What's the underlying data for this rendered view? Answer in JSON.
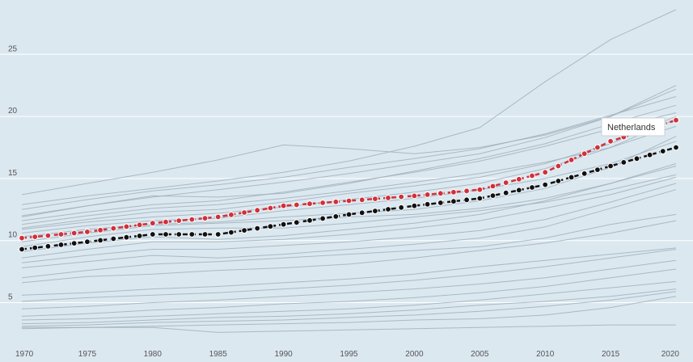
{
  "chart_data": {
    "type": "line",
    "title": "",
    "xlabel": "",
    "ylabel": "",
    "xlim": [
      1970,
      2020
    ],
    "ylim": [
      2,
      29
    ],
    "grid": true,
    "x_ticks": [
      1970,
      1975,
      1980,
      1985,
      1990,
      1995,
      2000,
      2005,
      2010,
      2015,
      2020
    ],
    "y_ticks": [
      5,
      10,
      15,
      20,
      25
    ],
    "x": [
      1970,
      1975,
      1980,
      1985,
      1990,
      1995,
      2000,
      2005,
      2010,
      2015,
      2020
    ],
    "highlight_series": [
      {
        "name": "Netherlands",
        "color": "#d0313a",
        "values": [
          10.2,
          10.7,
          11.4,
          11.9,
          12.8,
          13.2,
          13.6,
          14.1,
          15.5,
          18.0,
          19.7
        ]
      },
      {
        "color": "#111111",
        "values": [
          9.3,
          9.9,
          10.5,
          10.5,
          11.3,
          12.1,
          12.8,
          13.4,
          14.5,
          16.0,
          17.5
        ]
      }
    ],
    "background_series": [
      [
        13.7,
        14.6,
        15.5,
        16.5,
        17.7,
        17.4,
        17.0,
        17.5,
        18.5,
        20.0,
        22.5
      ],
      [
        12.9,
        13.6,
        14.2,
        14.8,
        15.5,
        16.4,
        17.6,
        19.1,
        22.8,
        26.2,
        28.6
      ],
      [
        12.5,
        13.3,
        14.0,
        14.5,
        15.1,
        15.9,
        16.6,
        17.4,
        18.6,
        20.1,
        21.6
      ],
      [
        12.0,
        12.8,
        13.5,
        14.1,
        14.7,
        15.4,
        16.2,
        17.0,
        18.3,
        20.0,
        22.2
      ],
      [
        11.9,
        12.8,
        13.6,
        13.5,
        13.8,
        14.6,
        15.6,
        16.6,
        17.8,
        19.4,
        20.9
      ],
      [
        11.6,
        12.3,
        12.9,
        13.2,
        13.9,
        14.7,
        15.5,
        16.4,
        17.6,
        19.0,
        20.3
      ],
      [
        11.3,
        12.0,
        12.6,
        12.9,
        13.4,
        14.0,
        14.7,
        15.4,
        16.3,
        17.5,
        19.2
      ],
      [
        11.0,
        11.7,
        12.3,
        12.5,
        13.1,
        13.8,
        14.4,
        15.1,
        16.2,
        17.8,
        20.0
      ],
      [
        10.9,
        11.5,
        11.9,
        12.2,
        12.7,
        13.3,
        13.9,
        14.6,
        15.8,
        17.5,
        19.8
      ],
      [
        10.6,
        11.2,
        11.6,
        11.8,
        12.4,
        12.9,
        13.4,
        14.1,
        15.0,
        16.2,
        18.0
      ],
      [
        10.3,
        10.9,
        11.3,
        11.5,
        11.9,
        12.2,
        12.5,
        13.2,
        14.2,
        15.9,
        18.4
      ],
      [
        9.9,
        10.6,
        11.2,
        11.4,
        11.6,
        11.9,
        12.1,
        12.6,
        13.4,
        14.6,
        16.0
      ],
      [
        9.5,
        10.3,
        10.9,
        11.0,
        11.0,
        11.4,
        11.9,
        12.4,
        13.1,
        14.1,
        15.3
      ],
      [
        9.1,
        9.8,
        10.3,
        10.1,
        10.4,
        10.9,
        11.4,
        12.1,
        13.2,
        14.6,
        16.2
      ],
      [
        8.6,
        9.3,
        9.9,
        9.9,
        10.1,
        10.5,
        11.0,
        11.6,
        12.6,
        13.7,
        15.1
      ],
      [
        8.2,
        8.8,
        9.3,
        9.3,
        9.6,
        9.9,
        10.3,
        10.8,
        11.7,
        13.1,
        14.6
      ],
      [
        7.8,
        8.3,
        8.8,
        8.6,
        8.9,
        9.3,
        9.7,
        10.2,
        11.1,
        12.6,
        14.1
      ],
      [
        7.0,
        7.6,
        8.1,
        8.3,
        8.6,
        8.9,
        9.2,
        9.5,
        10.2,
        11.3,
        12.1
      ],
      [
        6.6,
        7.1,
        7.3,
        7.6,
        7.8,
        8.1,
        8.6,
        9.2,
        9.8,
        10.6,
        11.6
      ],
      [
        5.6,
        5.8,
        6.1,
        6.3,
        6.6,
        6.9,
        7.3,
        7.9,
        8.4,
        8.9,
        9.4
      ],
      [
        5.1,
        5.4,
        5.6,
        5.8,
        6.1,
        6.4,
        6.8,
        7.3,
        7.9,
        8.6,
        9.3
      ],
      [
        4.5,
        4.7,
        5.0,
        5.2,
        5.5,
        5.8,
        6.1,
        6.5,
        7.0,
        7.7,
        8.4
      ],
      [
        3.9,
        4.1,
        4.4,
        4.6,
        4.9,
        5.1,
        5.4,
        5.8,
        6.3,
        7.0,
        7.7
      ],
      [
        3.6,
        3.7,
        3.9,
        4.1,
        4.3,
        4.5,
        4.8,
        5.2,
        5.7,
        6.2,
        6.7
      ],
      [
        3.3,
        3.4,
        3.6,
        3.8,
        3.9,
        4.1,
        4.4,
        4.8,
        5.1,
        5.5,
        6.1
      ],
      [
        3.1,
        3.2,
        3.4,
        3.5,
        3.6,
        3.8,
        4.0,
        4.3,
        4.7,
        5.2,
        5.9
      ],
      [
        3.0,
        3.0,
        3.0,
        2.6,
        2.7,
        2.8,
        2.9,
        3.0,
        3.1,
        3.2,
        3.2
      ],
      [
        2.9,
        3.0,
        3.1,
        3.2,
        3.3,
        3.4,
        3.6,
        3.7,
        4.0,
        4.6,
        5.5
      ]
    ]
  }
}
